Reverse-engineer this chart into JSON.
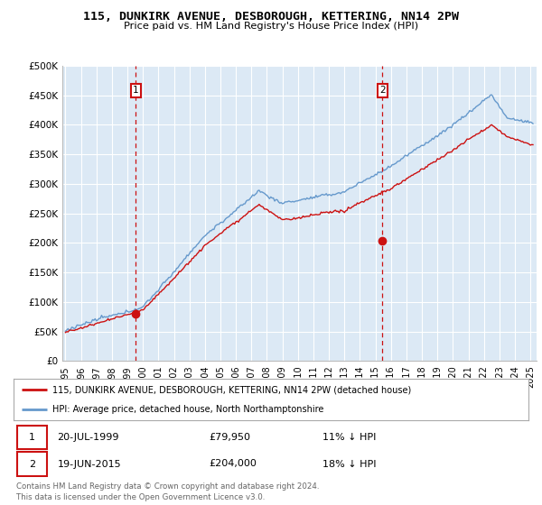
{
  "title": "115, DUNKIRK AVENUE, DESBOROUGH, KETTERING, NN14 2PW",
  "subtitle": "Price paid vs. HM Land Registry's House Price Index (HPI)",
  "bg_color": "#dce9f5",
  "grid_color": "#ffffff",
  "hpi_color": "#6699cc",
  "price_color": "#cc1111",
  "ylim": [
    0,
    500000
  ],
  "yticks": [
    0,
    50000,
    100000,
    150000,
    200000,
    250000,
    300000,
    350000,
    400000,
    450000,
    500000
  ],
  "ytick_labels": [
    "£0",
    "£50K",
    "£100K",
    "£150K",
    "£200K",
    "£250K",
    "£300K",
    "£350K",
    "£400K",
    "£450K",
    "£500K"
  ],
  "xlim_start": 1994.8,
  "xlim_end": 2025.4,
  "xticks": [
    1995,
    1996,
    1997,
    1998,
    1999,
    2000,
    2001,
    2002,
    2003,
    2004,
    2005,
    2006,
    2007,
    2008,
    2009,
    2010,
    2011,
    2012,
    2013,
    2014,
    2015,
    2016,
    2017,
    2018,
    2019,
    2020,
    2021,
    2022,
    2023,
    2024,
    2025
  ],
  "transaction1_x": 1999.55,
  "transaction1_y": 79950,
  "transaction1_label": "1",
  "transaction1_date": "20-JUL-1999",
  "transaction1_price": "£79,950",
  "transaction1_hpi": "11% ↓ HPI",
  "transaction2_x": 2015.46,
  "transaction2_y": 204000,
  "transaction2_label": "2",
  "transaction2_date": "19-JUN-2015",
  "transaction2_price": "£204,000",
  "transaction2_hpi": "18% ↓ HPI",
  "legend_line1": "115, DUNKIRK AVENUE, DESBOROUGH, KETTERING, NN14 2PW (detached house)",
  "legend_line2": "HPI: Average price, detached house, North Northamptonshire",
  "footer": "Contains HM Land Registry data © Crown copyright and database right 2024.\nThis data is licensed under the Open Government Licence v3.0."
}
